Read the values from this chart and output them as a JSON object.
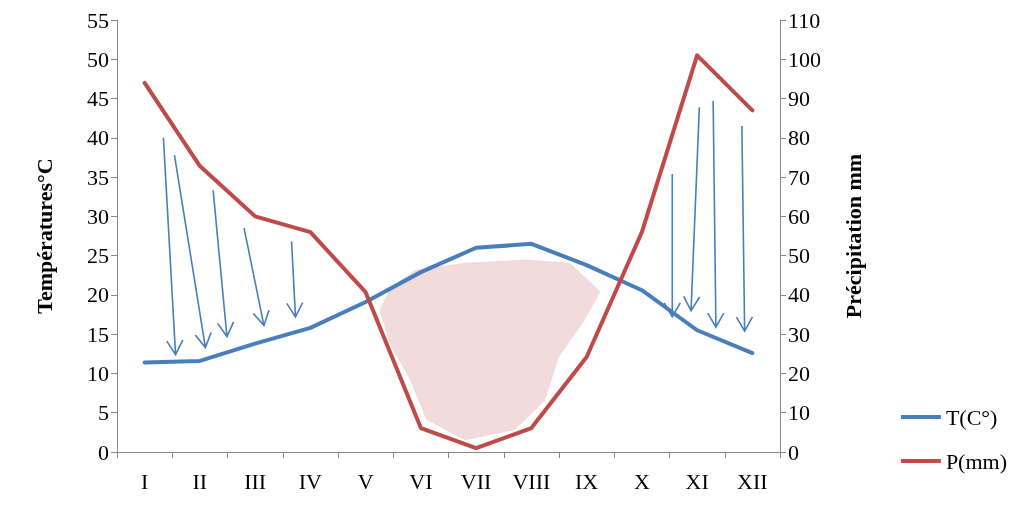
{
  "chart_data": {
    "type": "line",
    "categories": [
      "I",
      "II",
      "III",
      "IV",
      "V",
      "VI",
      "VII",
      "VIII",
      "IX",
      "X",
      "XI",
      "XII"
    ],
    "series": [
      {
        "name": "T(C°)",
        "color": "#4a7ebb",
        "values": [
          11.4,
          11.6,
          13.8,
          15.8,
          19.1,
          22.9,
          26,
          26.5,
          23.8,
          20.6,
          15.5,
          12.6
        ]
      },
      {
        "name": "P(mm)",
        "color": "#be4b48",
        "axis": "y2",
        "values": [
          94,
          72.8,
          60,
          56,
          40.7,
          6.1,
          1,
          6.1,
          24.2,
          56,
          101,
          87
        ]
      }
    ],
    "ylabel": "Températures°C",
    "y2label": "Précipitation mm",
    "ylim": [
      0,
      55
    ],
    "yticks": [
      0,
      5,
      10,
      15,
      20,
      25,
      30,
      35,
      40,
      45,
      50,
      55
    ],
    "y2lim": [
      0,
      110
    ],
    "y2ticks": [
      0,
      10,
      20,
      30,
      40,
      50,
      60,
      70,
      80,
      90,
      100,
      110
    ],
    "legend": "bottom right",
    "grid": false,
    "marker": "none",
    "line_style": "solid"
  }
}
